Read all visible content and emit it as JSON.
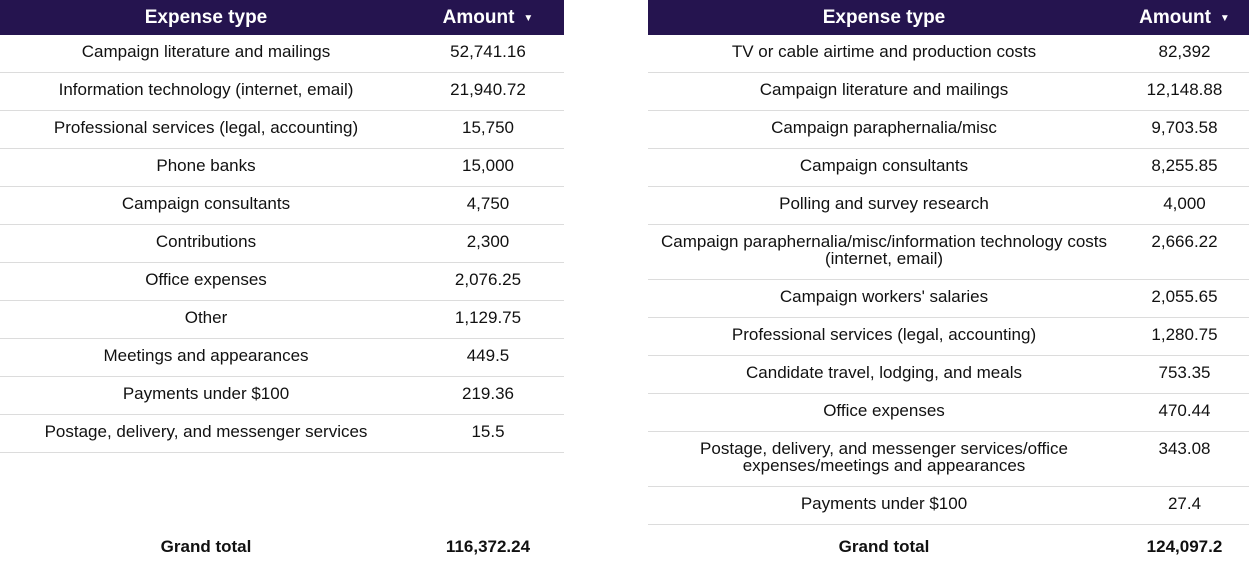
{
  "chart_data": [
    {
      "type": "table",
      "columns": [
        "Expense type",
        "Amount"
      ],
      "sort_indicator": "descending",
      "rows": [
        {
          "type": "Campaign literature and mailings",
          "amount": "52,741.16"
        },
        {
          "type": "Information technology (internet, email)",
          "amount": "21,940.72"
        },
        {
          "type": "Professional services (legal, accounting)",
          "amount": "15,750"
        },
        {
          "type": "Phone banks",
          "amount": "15,000"
        },
        {
          "type": "Campaign consultants",
          "amount": "4,750"
        },
        {
          "type": "Contributions",
          "amount": "2,300"
        },
        {
          "type": "Office expenses",
          "amount": "2,076.25"
        },
        {
          "type": "Other",
          "amount": "1,129.75"
        },
        {
          "type": "Meetings and appearances",
          "amount": "449.5"
        },
        {
          "type": "Payments under $100",
          "amount": "219.36"
        },
        {
          "type": "Postage, delivery, and messenger services",
          "amount": "15.5"
        }
      ],
      "total_label": "Grand total",
      "total_value": "116,372.24"
    },
    {
      "type": "table",
      "columns": [
        "Expense type",
        "Amount"
      ],
      "sort_indicator": "descending",
      "rows": [
        {
          "type": "TV or cable airtime and production costs",
          "amount": "82,392"
        },
        {
          "type": "Campaign literature and mailings",
          "amount": "12,148.88"
        },
        {
          "type": "Campaign paraphernalia/misc",
          "amount": "9,703.58"
        },
        {
          "type": "Campaign consultants",
          "amount": "8,255.85"
        },
        {
          "type": "Polling and survey research",
          "amount": "4,000"
        },
        {
          "type": "Campaign paraphernalia/misc/information technology costs (internet, email)",
          "amount": "2,666.22"
        },
        {
          "type": "Campaign workers' salaries",
          "amount": "2,055.65"
        },
        {
          "type": "Professional services (legal, accounting)",
          "amount": "1,280.75"
        },
        {
          "type": "Candidate travel, lodging, and meals",
          "amount": "753.35"
        },
        {
          "type": "Office expenses",
          "amount": "470.44"
        },
        {
          "type": "Postage, delivery, and messenger services/office expenses/meetings and appearances",
          "amount": "343.08"
        },
        {
          "type": "Payments under $100",
          "amount": "27.4"
        }
      ],
      "total_label": "Grand total",
      "total_value": "124,097.2"
    }
  ],
  "colors": {
    "header_bg": "#25144f",
    "header_text": "#ffffff",
    "row_border": "#dcdcdc"
  },
  "icons": {
    "sort": "caret-down-icon"
  }
}
